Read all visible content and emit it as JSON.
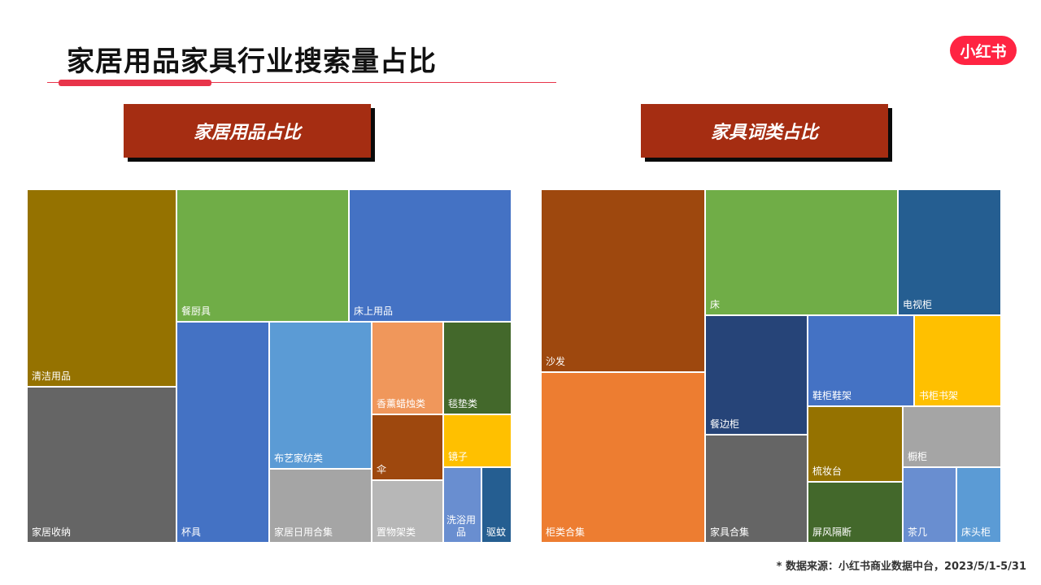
{
  "header": {
    "title": "家居用品家具行业搜索量占比",
    "logo_text": "小红书"
  },
  "colors": {
    "accent": "#e8344a",
    "banner": "#a52d12",
    "logo": "#ff2442"
  },
  "banners": {
    "left": "家居用品占比",
    "right": "家具词类占比"
  },
  "chart_data": [
    {
      "type": "treemap",
      "title": "家居用品占比",
      "nodes": [
        {
          "name": "清洁用品",
          "color": "#957200"
        },
        {
          "name": "家居收纳",
          "color": "#656565"
        },
        {
          "name": "餐厨具",
          "color": "#70ad47"
        },
        {
          "name": "床上用品",
          "color": "#4472c4"
        },
        {
          "name": "杯具",
          "color": "#4472c4"
        },
        {
          "name": "布艺家纺类",
          "color": "#5b9bd5"
        },
        {
          "name": "家居日用合集",
          "color": "#a5a5a5"
        },
        {
          "name": "香薰蜡烛类",
          "color": "#f0975b"
        },
        {
          "name": "毯垫类",
          "color": "#43682b"
        },
        {
          "name": "伞",
          "color": "#9e480e"
        },
        {
          "name": "镜子",
          "color": "#ffc000"
        },
        {
          "name": "置物架类",
          "color": "#b7b7b7"
        },
        {
          "name": "洗浴用品",
          "color": "#698ed0"
        },
        {
          "name": "驱蚊",
          "color": "#255e91"
        }
      ]
    },
    {
      "type": "treemap",
      "title": "家具词类占比",
      "nodes": [
        {
          "name": "沙发",
          "color": "#9e480e"
        },
        {
          "name": "柜类合集",
          "color": "#ed7d31"
        },
        {
          "name": "床",
          "color": "#70ad47"
        },
        {
          "name": "电视柜",
          "color": "#255e91"
        },
        {
          "name": "餐边柜",
          "color": "#264478"
        },
        {
          "name": "家具合集",
          "color": "#656565"
        },
        {
          "name": "鞋柜鞋架",
          "color": "#4472c4"
        },
        {
          "name": "书柜书架",
          "color": "#ffc000"
        },
        {
          "name": "梳妆台",
          "color": "#957200"
        },
        {
          "name": "橱柜",
          "color": "#a5a5a5"
        },
        {
          "name": "屏风隔断",
          "color": "#43682b"
        },
        {
          "name": "茶几",
          "color": "#698ed0"
        },
        {
          "name": "床头柜",
          "color": "#5b9bd5"
        }
      ]
    }
  ],
  "footer": {
    "source": "* 数据来源：小红书商业数据中台，2023/5/1-5/31"
  }
}
